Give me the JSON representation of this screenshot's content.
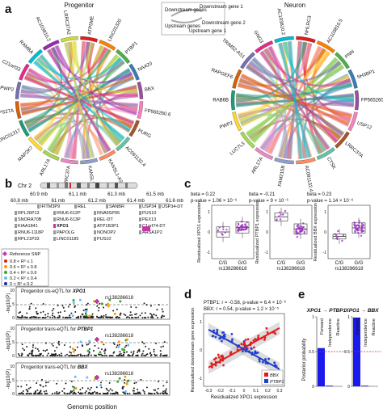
{
  "panel_a": {
    "letter": "a",
    "progenitor_title": "Progenitor",
    "neuron_title": "Neuron",
    "legend": {
      "downstream_genes": "Downstream genes",
      "upstream_genes": "Upstream genes",
      "downstream_gene_1": "Downstream gene 1",
      "downstream_gene_2": "Downstream gene 2",
      "upstream_gene_1": "Upstream gene 1"
    },
    "progenitor_genes": [
      "ATP5ME",
      "LINC01320",
      "PTBP1",
      "NAA20",
      "BBX",
      "FP565260.6",
      "PURG",
      "AC091132.4",
      "KANSL1-AS1",
      "KANSL1",
      "LRRC37A",
      "ARL17A",
      "MAP2K7",
      "LINC01317",
      "RPS27A",
      "PWP2",
      "C21orf33",
      "RAMBA",
      "AC103810.2",
      "LRRC37A2"
    ],
    "neuron_genes": [
      "NHLRC3",
      "AC103810.5",
      "PNN",
      "SH3BP1",
      "FP565260.6",
      "USP12",
      "LRRC37A",
      "CTSK",
      "AC091132.4",
      "FAM215B",
      "ARL17A",
      "LUC7L3",
      "PWP2",
      "RAB6B",
      "RAPGEF6",
      "TRIM52-AS1",
      "GNG3",
      "AC103810.2"
    ]
  },
  "panel_b": {
    "letter": "b",
    "chr_label": "Chr 2",
    "positions": [
      "60.8 mb",
      "61 mb",
      "61.2 mb",
      "61.4 mb",
      "61.6 mb"
    ],
    "positions_top": [
      "60.9 mb",
      "61.1 mb",
      "61.3 mb",
      "61.5 mb"
    ],
    "genes": [
      "IFITM3P9",
      "REL",
      "SANBR",
      "USP34",
      "USP34-DT",
      "RPL26P13",
      "RNU6-612P",
      "RNA5SP95",
      "PUS10",
      "SNORA70B",
      "RNU6-613P",
      "REL-DT",
      "PEX13",
      "KIAA1841",
      "XPO1",
      "ATP1B3P1",
      "C1orf74-DT",
      "RNU6-1118P",
      "PAPOLG",
      "NONOP2",
      "AHSA1P2",
      "RPL21P33",
      "LINC01185",
      "PUS10"
    ],
    "highlight_gene": "XPO1",
    "legend_title": "Reference SNP",
    "legend_items": [
      "0.8 < R² ≤ 1",
      "0.6 < R² ≤ 0.8",
      "0.4 < R² ≤ 0.6",
      "0.2 < R² ≤ 0.4",
      "0 < R² ≤ 0.2"
    ],
    "legend_colors": [
      "#e31a1c",
      "#ff9900",
      "#33aa33",
      "#66bbff",
      "#2222aa"
    ],
    "tracks": [
      {
        "title_prefix": "Progenitor cis-eQTL for ",
        "gene": "XPO1",
        "snp": "rs138286618"
      },
      {
        "title_prefix": "Progenitor trans-eQTL for ",
        "gene": "PTBP1",
        "snp": "rs138286618"
      },
      {
        "title_prefix": "Progenitor trans-eQTL for ",
        "gene": "BBX",
        "snp": "rs138286618"
      }
    ],
    "ylabel": "-log10(P)",
    "yticks": [
      "0",
      "5",
      "10"
    ],
    "xlabel": "Genomic position"
  },
  "panel_c": {
    "letter": "c",
    "plots": [
      {
        "beta": "beta = 0.22",
        "pvalue": "p-value = 1.06 × 10⁻⁶",
        "ylabel": "Residualized XPO1 expression",
        "categories": [
          "C/G",
          "G/G"
        ],
        "xlabel": "rs138286618",
        "yticks": [
          "-1",
          "0",
          "1"
        ]
      },
      {
        "beta": "beta = -0.21",
        "pvalue": "p-value = 9 × 10⁻⁶",
        "ylabel": "Residualized PTBP1 expression",
        "categories": [
          "C/G",
          "G/G"
        ],
        "xlabel": "rs138286618",
        "yticks": [
          "-1",
          "0",
          "1"
        ]
      },
      {
        "beta": "beta = 0.23",
        "pvalue": "p-value = 1.14 × 10⁻⁶",
        "ylabel": "Residualized BBX expression",
        "categories": [
          "C/G",
          "G/G"
        ],
        "xlabel": "rs138286618",
        "yticks": [
          "-1",
          "0",
          "1"
        ]
      }
    ]
  },
  "panel_d": {
    "letter": "d",
    "stat1": "PTBP1: r = -0.58, p-value = 6.4 × 10⁻⁶",
    "stat2": "BBX: r = 0.54, p-value = 1.2 × 10⁻⁵",
    "ylabel": "Residualized downstream gene expression",
    "xlabel": "Residualized XPO1 expression",
    "xticks": [
      "-0.3",
      "-0.2",
      "-0.1",
      "0",
      "0.1",
      "0.2",
      "0.3"
    ],
    "yticks": [
      "-1",
      "0",
      "1"
    ],
    "legend": [
      "BBX",
      "PTBP1"
    ],
    "colors": {
      "BBX": "#e31a1c",
      "PTBP1": "#1f3fcc"
    }
  },
  "panel_e": {
    "letter": "e",
    "plots": [
      {
        "title": "XPO1 → PTBP1",
        "categories": [
          "Forward",
          "Independence",
          "Reactive"
        ],
        "values": [
          0.55,
          0.01,
          0.0
        ]
      },
      {
        "title": "XPO1 → BBX",
        "categories": [
          "Forward",
          "Independence",
          "Reactive"
        ],
        "values": [
          0.99,
          0.01,
          0.0
        ]
      }
    ],
    "ylabel": "Posterior probability",
    "yticks": [
      "0",
      "0.5",
      "1"
    ],
    "threshold": 0.5
  },
  "colors": {
    "blue_bar": "#1a1aee",
    "threshold": "#d62728"
  }
}
